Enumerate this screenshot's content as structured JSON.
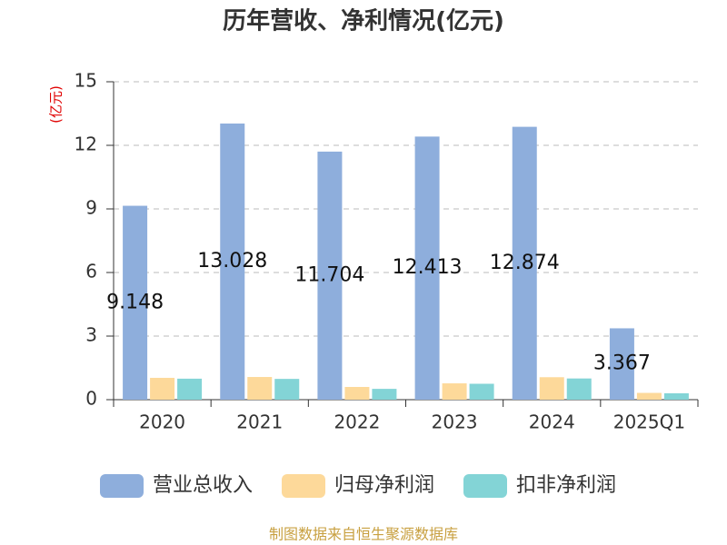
{
  "chart_data": {
    "type": "bar",
    "title": "历年营收、净利情况(亿元)",
    "y_label": "(亿元)",
    "categories": [
      "2020",
      "2021",
      "2022",
      "2023",
      "2024",
      "2025Q1"
    ],
    "series": [
      {
        "name": "营业总收入",
        "color": "#8eaedc",
        "values": [
          9.148,
          13.028,
          11.704,
          12.413,
          12.874,
          3.367
        ]
      },
      {
        "name": "归母净利润",
        "color": "#fdd99a",
        "values": [
          1.03,
          1.07,
          0.6,
          0.77,
          1.06,
          0.32
        ]
      },
      {
        "name": "扣非净利润",
        "color": "#83d4d6",
        "values": [
          0.99,
          0.98,
          0.51,
          0.75,
          1.0,
          0.3
        ]
      }
    ],
    "ylim": [
      0,
      15
    ],
    "yticks": [
      0,
      3,
      6,
      9,
      12,
      15
    ],
    "grid": true,
    "source": "制图数据来自恒生聚源数据库"
  }
}
